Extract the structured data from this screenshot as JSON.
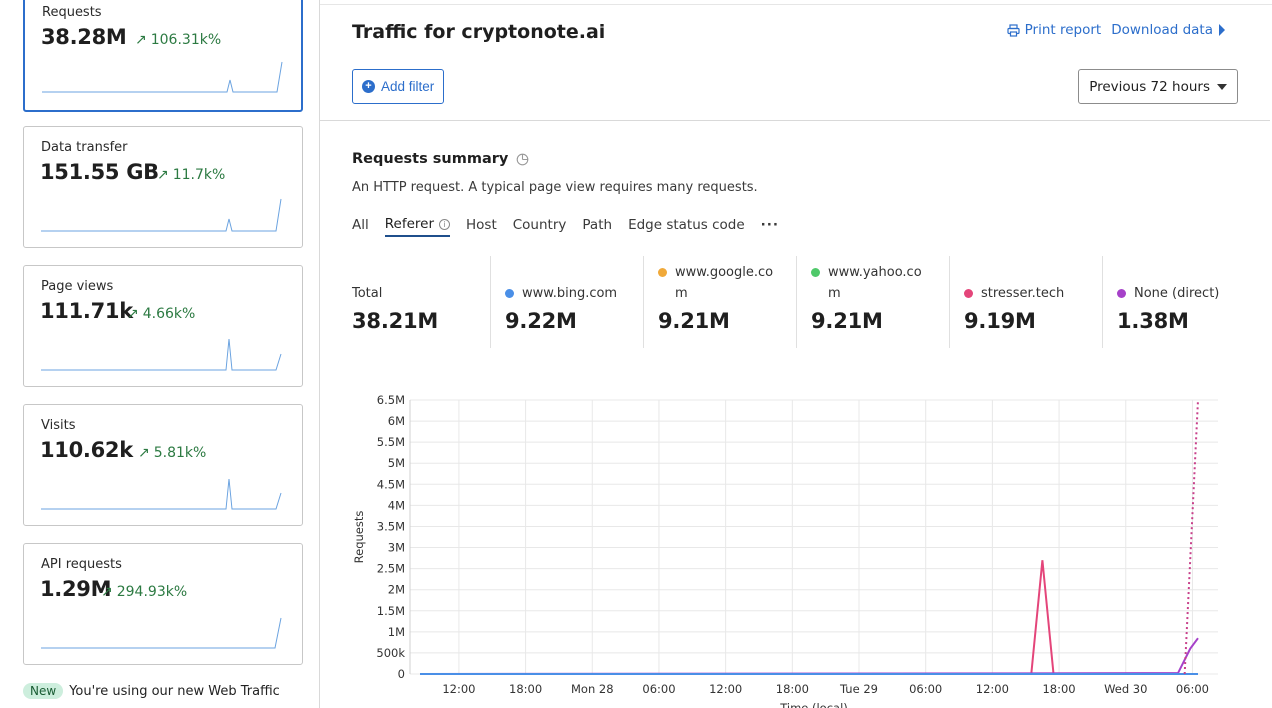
{
  "sidebar": {
    "cards": [
      {
        "label": "Requests",
        "value": "38.28M",
        "change": "106.31k%",
        "active": true
      },
      {
        "label": "Data transfer",
        "value": "151.55 GB",
        "change": "11.7k%",
        "active": false
      },
      {
        "label": "Page views",
        "value": "111.71k",
        "change": "4.66k%",
        "active": false
      },
      {
        "label": "Visits",
        "value": "110.62k",
        "change": "5.81k%",
        "active": false
      },
      {
        "label": "API requests",
        "value": "1.29M",
        "change": "294.93k%",
        "active": false
      }
    ],
    "new_badge": "New",
    "new_text": "You're using our new Web Traffic"
  },
  "header": {
    "title": "Traffic for cryptonote.ai",
    "print_label": "Print report",
    "download_label": "Download data",
    "add_filter_label": "Add filter",
    "time_range": "Previous 72 hours"
  },
  "summary": {
    "title": "Requests summary",
    "description": "An HTTP request. A typical page view requires many requests.",
    "tabs": [
      "All",
      "Referer",
      "Host",
      "Country",
      "Path",
      "Edge status code"
    ],
    "active_tab": "Referer",
    "stats": [
      {
        "label": "Total",
        "value": "38.21M",
        "color": ""
      },
      {
        "label": "www.bing.com",
        "value": "9.22M",
        "color": "#4a8fe7"
      },
      {
        "label": "www.google.com",
        "value": "9.21M",
        "color": "#f0a93a"
      },
      {
        "label": "www.yahoo.com",
        "value": "9.21M",
        "color": "#4fc96a"
      },
      {
        "label": "stresser.tech",
        "value": "9.19M",
        "color": "#e4457a"
      },
      {
        "label": "None (direct)",
        "value": "1.38M",
        "color": "#a641c9"
      }
    ]
  },
  "chart_data": {
    "type": "line",
    "ylabel": "Requests",
    "xlabel": "Time (local)",
    "y_ticks": [
      "0",
      "500k",
      "1M",
      "1.5M",
      "2M",
      "2.5M",
      "3M",
      "3.5M",
      "4M",
      "4.5M",
      "5M",
      "5.5M",
      "6M",
      "6.5M"
    ],
    "ylim": [
      0,
      6500000
    ],
    "x_ticks": [
      "12:00",
      "18:00",
      "Mon 28",
      "06:00",
      "12:00",
      "18:00",
      "Tue 29",
      "06:00",
      "12:00",
      "18:00",
      "Wed 30",
      "06:00"
    ],
    "series": [
      {
        "name": "stresser.tech",
        "color": "#e4457a",
        "points": [
          [
            0,
            0
          ],
          [
            55,
            0
          ],
          [
            56,
            2700000
          ],
          [
            57,
            0
          ],
          [
            70,
            0
          ]
        ]
      },
      {
        "name": "None (direct)",
        "color": "#a641c9",
        "points": [
          [
            0,
            0
          ],
          [
            67,
            20000
          ],
          [
            68.2,
            20000
          ],
          [
            69.3,
            600000
          ],
          [
            70,
            850000
          ]
        ]
      },
      {
        "name": "www.bing.com",
        "color": "#4a8fe7",
        "points": [
          [
            0,
            0
          ],
          [
            69,
            0
          ],
          [
            70,
            0
          ]
        ]
      }
    ],
    "dashed_series": {
      "name": "stresser.tech",
      "color": "#c8408a",
      "points": [
        [
          68.8,
          0
        ],
        [
          70,
          6500000
        ]
      ]
    },
    "grid": true
  }
}
